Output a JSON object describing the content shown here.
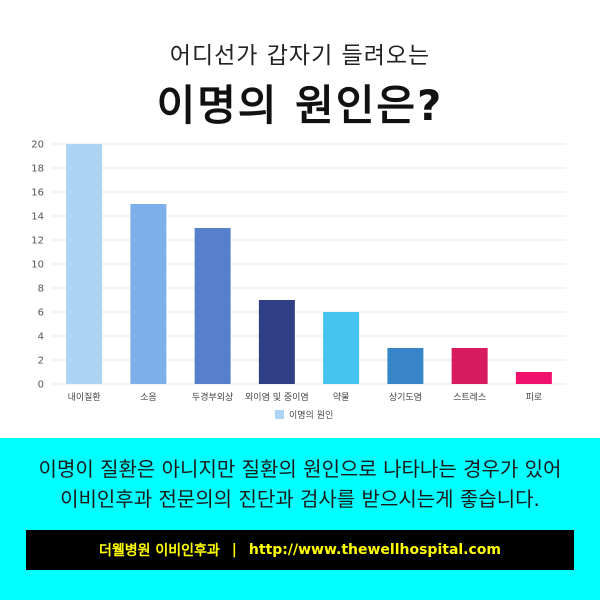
{
  "header": {
    "subtitle": "어디선가 갑자기 들려오는",
    "title": "이명의 원인은?"
  },
  "chart_data": {
    "type": "bar",
    "categories": [
      "내이질환",
      "소음",
      "두경부외상",
      "외이염 및 중이염",
      "약물",
      "상기도염",
      "스트레스",
      "피로"
    ],
    "series": [
      {
        "name": "이명의 원인",
        "values": [
          20,
          15,
          13,
          7,
          6,
          3,
          3,
          1
        ]
      }
    ],
    "bar_colors": [
      "#aed4f5",
      "#7db0ea",
      "#5680cc",
      "#2e3f86",
      "#45c4f2",
      "#3784c8",
      "#d81a5e",
      "#f0116f"
    ],
    "legend_color": "#aed4f5",
    "ylim": [
      0,
      20
    ],
    "yticks": [
      0,
      2,
      4,
      6,
      8,
      10,
      12,
      14,
      16,
      18,
      20
    ],
    "grid": true,
    "legend_position": "bottom"
  },
  "message": {
    "line1": "이명이 질환은 아니지만 질환의 원인으로 나타나는 경우가 있어",
    "line2": "이비인후과 전문의의 진단과 검사를 받으시는게 좋습니다."
  },
  "footer": {
    "clinic": "더웰병원 이비인후과",
    "separator": "|",
    "url": "http://www.thewellhospital.com"
  }
}
